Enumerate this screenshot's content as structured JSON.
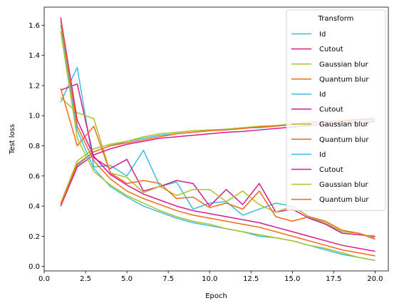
{
  "chart_data": {
    "type": "line",
    "xlabel": "Epoch",
    "ylabel": "Test loss",
    "xlim": [
      0.0,
      20.8
    ],
    "ylim": [
      -0.03,
      1.72
    ],
    "xticks": [
      0.0,
      2.5,
      5.0,
      7.5,
      10.0,
      12.5,
      15.0,
      17.5,
      20.0
    ],
    "xtick_labels": [
      "0.0",
      "2.5",
      "5.0",
      "7.5",
      "10.0",
      "12.5",
      "15.0",
      "17.5",
      "20.0"
    ],
    "yticks": [
      0.0,
      0.2,
      0.4,
      0.6,
      0.8,
      1.0,
      1.2,
      1.4,
      1.6
    ],
    "ytick_labels": [
      "0.0",
      "0.2",
      "0.4",
      "0.6",
      "0.8",
      "1.0",
      "1.2",
      "1.4",
      "1.6"
    ],
    "grid": false,
    "legend": {
      "title": "Transform",
      "position": "upper-right"
    },
    "x": [
      1,
      2,
      3,
      4,
      5,
      6,
      7,
      8,
      9,
      10,
      11,
      12,
      13,
      14,
      15,
      16,
      17,
      18,
      19,
      20
    ],
    "series": [
      {
        "name": "Id",
        "color": "#3dbde0",
        "values": [
          1.09,
          1.32,
          0.66,
          0.67,
          0.6,
          0.77,
          0.53,
          0.56,
          0.38,
          0.42,
          0.43,
          0.34,
          0.38,
          0.42,
          0.4,
          0.33,
          0.28,
          0.23,
          0.22,
          0.19
        ]
      },
      {
        "name": "Cutout",
        "color": "#d61c8f",
        "values": [
          1.17,
          1.21,
          0.72,
          0.65,
          0.71,
          0.5,
          0.53,
          0.57,
          0.55,
          0.4,
          0.51,
          0.41,
          0.55,
          0.36,
          0.38,
          0.32,
          0.28,
          0.22,
          0.21,
          0.2
        ]
      },
      {
        "name": "Gaussian blur",
        "color": "#a8c42b",
        "values": [
          1.12,
          1.02,
          0.98,
          0.62,
          0.59,
          0.49,
          0.53,
          0.47,
          0.51,
          0.51,
          0.43,
          0.5,
          0.41,
          0.36,
          0.4,
          0.33,
          0.29,
          0.23,
          0.22,
          0.19
        ]
      },
      {
        "name": "Quantum blur",
        "color": "#f26b1d",
        "values": [
          1.18,
          0.8,
          0.93,
          0.62,
          0.55,
          0.57,
          0.55,
          0.45,
          0.46,
          0.39,
          0.42,
          0.38,
          0.5,
          0.33,
          0.3,
          0.33,
          0.3,
          0.24,
          0.22,
          0.18
        ]
      },
      {
        "name": "Id",
        "color": "#3dbde0",
        "values": [
          0.42,
          0.67,
          0.76,
          0.8,
          0.83,
          0.85,
          0.87,
          0.88,
          0.89,
          0.9,
          0.91,
          0.92,
          0.92,
          0.93,
          0.94,
          0.95,
          0.96,
          0.96,
          0.97,
          0.97
        ]
      },
      {
        "name": "Cutout",
        "color": "#d61c8f",
        "values": [
          0.4,
          0.66,
          0.74,
          0.78,
          0.81,
          0.83,
          0.85,
          0.86,
          0.87,
          0.88,
          0.89,
          0.895,
          0.905,
          0.915,
          0.925,
          0.935,
          0.945,
          0.95,
          0.955,
          0.96
        ]
      },
      {
        "name": "Gaussian blur",
        "color": "#a8c42b",
        "values": [
          0.42,
          0.7,
          0.78,
          0.81,
          0.83,
          0.86,
          0.88,
          0.89,
          0.9,
          0.905,
          0.91,
          0.92,
          0.93,
          0.935,
          0.945,
          0.955,
          0.96,
          0.97,
          0.975,
          0.98
        ]
      },
      {
        "name": "Quantum blur",
        "color": "#f26b1d",
        "values": [
          0.41,
          0.68,
          0.76,
          0.8,
          0.82,
          0.84,
          0.86,
          0.88,
          0.89,
          0.9,
          0.905,
          0.915,
          0.925,
          0.93,
          0.945,
          0.955,
          0.96,
          0.965,
          0.975,
          0.98
        ]
      },
      {
        "name": "Id",
        "color": "#3dbde0",
        "values": [
          1.6,
          0.9,
          0.65,
          0.53,
          0.46,
          0.4,
          0.36,
          0.32,
          0.29,
          0.27,
          0.25,
          0.23,
          0.2,
          0.19,
          0.17,
          0.14,
          0.11,
          0.08,
          0.06,
          0.04
        ]
      },
      {
        "name": "Cutout",
        "color": "#d61c8f",
        "values": [
          1.65,
          0.97,
          0.73,
          0.61,
          0.54,
          0.48,
          0.44,
          0.4,
          0.37,
          0.35,
          0.33,
          0.31,
          0.29,
          0.26,
          0.23,
          0.2,
          0.17,
          0.14,
          0.12,
          0.1
        ]
      },
      {
        "name": "Gaussian blur",
        "color": "#a8c42b",
        "values": [
          1.56,
          0.85,
          0.63,
          0.54,
          0.47,
          0.42,
          0.37,
          0.33,
          0.3,
          0.28,
          0.25,
          0.23,
          0.21,
          0.19,
          0.17,
          0.14,
          0.12,
          0.09,
          0.06,
          0.04
        ]
      },
      {
        "name": "Quantum blur",
        "color": "#f26b1d",
        "values": [
          1.63,
          0.93,
          0.7,
          0.58,
          0.5,
          0.45,
          0.41,
          0.37,
          0.34,
          0.32,
          0.3,
          0.28,
          0.26,
          0.23,
          0.2,
          0.17,
          0.14,
          0.11,
          0.09,
          0.07
        ]
      }
    ]
  }
}
